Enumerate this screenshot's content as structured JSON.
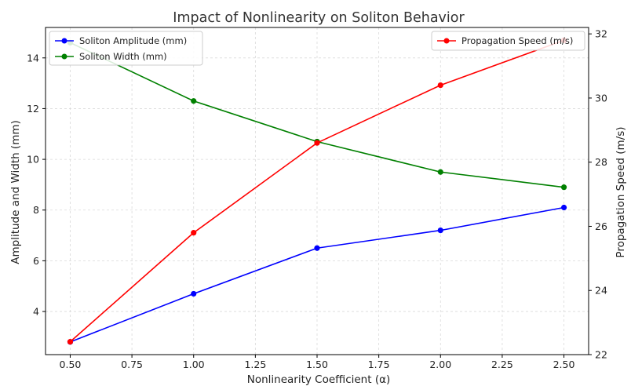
{
  "chart_data": {
    "type": "line",
    "title": "Impact of Nonlinearity on Soliton Behavior",
    "xlabel": "Nonlinearity Coefficient (α)",
    "ylabel_left": "Amplitude and Width (mm)",
    "ylabel_right": "Propagation Speed (m/s)",
    "x": [
      0.5,
      1.0,
      1.5,
      2.0,
      2.5
    ],
    "xlim": [
      0.4,
      2.6
    ],
    "ylim_left": [
      2.3,
      15.2
    ],
    "ylim_right": [
      22,
      32.2
    ],
    "x_ticks": [
      "0.50",
      "0.75",
      "1.00",
      "1.25",
      "1.50",
      "1.75",
      "2.00",
      "2.25",
      "2.50"
    ],
    "y_ticks_left": [
      "4",
      "6",
      "8",
      "10",
      "12",
      "14"
    ],
    "y_ticks_right": [
      "22",
      "24",
      "26",
      "28",
      "30",
      "32"
    ],
    "grid": true,
    "series": [
      {
        "name": "Soliton Amplitude (mm)",
        "axis": "left",
        "color": "#0000ff",
        "values": [
          2.8,
          4.7,
          6.5,
          7.2,
          8.1
        ]
      },
      {
        "name": "Soliton Width (mm)",
        "axis": "left",
        "color": "#008000",
        "values": [
          14.6,
          12.3,
          10.7,
          9.5,
          8.9
        ]
      },
      {
        "name": "Propagation Speed (m/s)",
        "axis": "right",
        "color": "#ff0000",
        "values": [
          22.4,
          25.8,
          28.6,
          30.4,
          31.8
        ]
      }
    ],
    "legend_left": {
      "placement": "top-left",
      "entries": [
        "Soliton Amplitude (mm)",
        "Soliton Width (mm)"
      ]
    },
    "legend_right": {
      "placement": "top-right",
      "entries": [
        "Propagation Speed (m/s)"
      ]
    }
  }
}
